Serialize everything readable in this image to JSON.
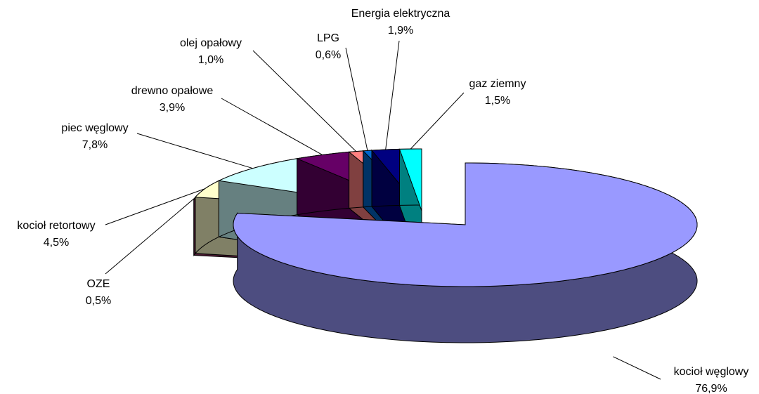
{
  "chart_data": {
    "type": "pie3d",
    "categories": [
      "kocioł węglowy",
      "OZE",
      "kocioł retortowy",
      "piec węglowy",
      "drewno opałowe",
      "olej opałowy",
      "LPG",
      "Energia elektryczna",
      "gaz ziemny"
    ],
    "values": [
      76.9,
      0.5,
      4.5,
      7.8,
      3.9,
      1.0,
      0.6,
      1.9,
      1.5
    ],
    "value_labels": [
      "76,9%",
      "0,5%",
      "4,5%",
      "7,8%",
      "3,9%",
      "1,0%",
      "0,6%",
      "1,9%",
      "1,5%"
    ],
    "colors": [
      "#9999ff",
      "#993366",
      "#ffffcc",
      "#ccffff",
      "#660066",
      "#ff8080",
      "#0066cc",
      "#000080",
      "#00ffff"
    ]
  }
}
